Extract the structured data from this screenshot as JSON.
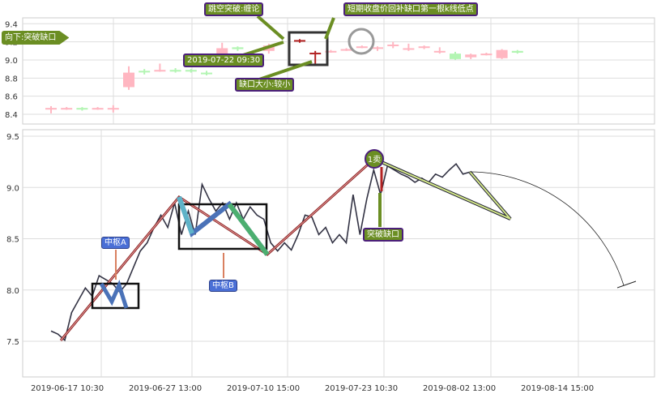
{
  "chart_data": [
    {
      "type": "candlestick",
      "ylim": [
        8.35,
        9.42
      ],
      "yticks": [
        "8.4",
        "8.6",
        "8.8",
        "9.0",
        "9.2",
        "9.4"
      ],
      "candles": [
        {
          "o": 8.46,
          "c": 8.47,
          "h": 8.49,
          "l": 8.41,
          "dir": "up"
        },
        {
          "o": 8.46,
          "c": 8.47,
          "h": 8.48,
          "l": 8.45,
          "dir": "up"
        },
        {
          "o": 8.47,
          "c": 8.46,
          "h": 8.48,
          "l": 8.44,
          "dir": "down"
        },
        {
          "o": 8.46,
          "c": 8.47,
          "h": 8.48,
          "l": 8.45,
          "dir": "up"
        },
        {
          "o": 8.46,
          "c": 8.47,
          "h": 8.5,
          "l": 8.42,
          "dir": "up"
        },
        {
          "o": 8.7,
          "c": 8.86,
          "h": 8.93,
          "l": 8.67,
          "dir": "up"
        },
        {
          "o": 8.88,
          "c": 8.87,
          "h": 8.9,
          "l": 8.84,
          "dir": "down"
        },
        {
          "o": 8.88,
          "c": 8.89,
          "h": 8.96,
          "l": 8.87,
          "dir": "up"
        },
        {
          "o": 8.89,
          "c": 8.88,
          "h": 8.91,
          "l": 8.86,
          "dir": "down"
        },
        {
          "o": 8.89,
          "c": 8.88,
          "h": 8.9,
          "l": 8.86,
          "dir": "down"
        },
        {
          "o": 8.86,
          "c": 8.85,
          "h": 8.88,
          "l": 8.83,
          "dir": "down"
        },
        {
          "o": 9.04,
          "c": 9.13,
          "h": 9.19,
          "l": 9.02,
          "dir": "up"
        },
        {
          "o": 9.14,
          "c": 9.12,
          "h": 9.15,
          "l": 9.1,
          "dir": "down"
        },
        {
          "o": 9.07,
          "c": 9.04,
          "h": 9.09,
          "l": 9.03,
          "dir": "down"
        },
        {
          "o": 9.1,
          "c": 9.16,
          "h": 9.18,
          "l": 9.07,
          "dir": "up"
        },
        {
          "o": 9.21,
          "c": 9.22,
          "h": 9.23,
          "l": 9.19,
          "dir": "gap"
        },
        {
          "o": 9.08,
          "c": 9.08,
          "h": 9.1,
          "l": 8.95,
          "dir": "gap"
        },
        {
          "o": 9.09,
          "c": 9.1,
          "h": 9.11,
          "l": 9.08,
          "dir": "up"
        },
        {
          "o": 9.11,
          "c": 9.12,
          "h": 9.13,
          "l": 9.1,
          "dir": "up"
        },
        {
          "o": 9.14,
          "c": 9.15,
          "h": 9.16,
          "l": 9.13,
          "dir": "up"
        },
        {
          "o": 9.13,
          "c": 9.14,
          "h": 9.15,
          "l": 9.1,
          "dir": "up"
        },
        {
          "o": 9.16,
          "c": 9.17,
          "h": 9.2,
          "l": 9.13,
          "dir": "up"
        },
        {
          "o": 9.12,
          "c": 9.13,
          "h": 9.18,
          "l": 9.1,
          "dir": "up"
        },
        {
          "o": 9.14,
          "c": 9.15,
          "h": 9.16,
          "l": 9.12,
          "dir": "up"
        },
        {
          "o": 9.09,
          "c": 9.1,
          "h": 9.14,
          "l": 9.07,
          "dir": "up"
        },
        {
          "o": 9.07,
          "c": 9.01,
          "h": 9.09,
          "l": 9.0,
          "dir": "down"
        },
        {
          "o": 9.03,
          "c": 9.06,
          "h": 9.07,
          "l": 9.01,
          "dir": "up"
        },
        {
          "o": 9.06,
          "c": 9.07,
          "h": 9.08,
          "l": 9.05,
          "dir": "up"
        },
        {
          "o": 9.02,
          "c": 9.11,
          "h": 9.12,
          "l": 9.01,
          "dir": "up"
        },
        {
          "o": 9.1,
          "c": 9.08,
          "h": 9.11,
          "l": 9.07,
          "dir": "down"
        }
      ],
      "annotations": [
        "向下:突破缺口",
        "跳空突破:缠论",
        "2019-07-22 09:30",
        "缺口大小:较小",
        "短期收盘价回补缺口第一根k线低点"
      ]
    },
    {
      "type": "line",
      "ylim": [
        7.15,
        9.55
      ],
      "yticks": [
        "7.5",
        "8.0",
        "8.5",
        "9.0",
        "9.5"
      ],
      "xticks": [
        "2019-06-17 10:30",
        "2019-06-27 13:00",
        "2019-07-10 15:00",
        "2019-07-23 10:30",
        "2019-08-02 13:00",
        "2019-08-14 15:00"
      ],
      "values": [
        7.6,
        7.57,
        7.51,
        7.78,
        7.9,
        8.02,
        7.94,
        8.14,
        8.1,
        8.06,
        7.98,
        8.06,
        8.22,
        8.38,
        8.46,
        8.61,
        8.73,
        8.61,
        8.85,
        8.54,
        8.77,
        8.54,
        9.03,
        8.89,
        8.77,
        8.85,
        8.69,
        8.85,
        8.69,
        8.81,
        8.73,
        8.69,
        8.46,
        8.38,
        8.46,
        8.39,
        8.54,
        8.73,
        8.71,
        8.54,
        8.61,
        8.46,
        8.54,
        8.46,
        8.93,
        8.54,
        8.89,
        9.17,
        8.93,
        9.21,
        9.17,
        9.13,
        9.1,
        9.05,
        9.09,
        9.05,
        9.13,
        9.1,
        9.17,
        9.23,
        9.13,
        9.15
      ],
      "annotations": [
        "中枢A",
        "中枢B",
        "1卖",
        "突破缺口"
      ]
    }
  ],
  "colors": {
    "up": "#ffb6c1",
    "down": "#b3f5b3",
    "gap": "#b22222",
    "line": "#333344",
    "label_bg": "#6b8e23"
  }
}
